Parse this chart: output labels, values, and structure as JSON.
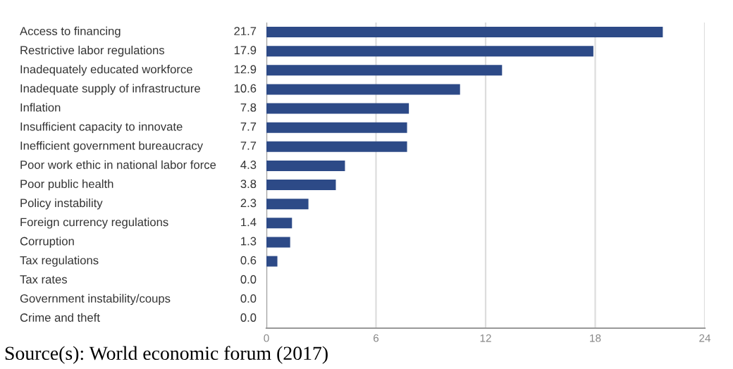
{
  "chart_data": {
    "type": "bar",
    "orientation": "horizontal",
    "categories": [
      "Access to financing",
      "Restrictive labor regulations",
      "Inadequately educated workforce",
      "Inadequate supply of infrastructure",
      "Inflation",
      "Insufficient capacity to innovate",
      "Inefficient government bureaucracy",
      "Poor work ethic in national labor force",
      "Poor public health",
      "Policy instability",
      "Foreign currency regulations",
      "Corruption",
      "Tax regulations",
      "Tax rates",
      "Government instability/coups",
      "Crime and theft"
    ],
    "values": [
      21.7,
      17.9,
      12.9,
      10.6,
      7.8,
      7.7,
      7.7,
      4.3,
      3.8,
      2.3,
      1.4,
      1.3,
      0.6,
      0.0,
      0.0,
      0.0
    ],
    "value_labels": [
      "21.7",
      "17.9",
      "12.9",
      "10.6",
      "7.8",
      "7.7",
      "7.7",
      "4.3",
      "3.8",
      "2.3",
      "1.4",
      "1.3",
      "0.6",
      "0.0",
      "0.0",
      "0.0"
    ],
    "color": "#2d4a87",
    "xlim": [
      0,
      24
    ],
    "xticks": [
      0,
      6,
      12,
      18,
      24
    ],
    "grid": "x",
    "annotations": [
      "Source(s): World economic forum (2017)"
    ]
  }
}
